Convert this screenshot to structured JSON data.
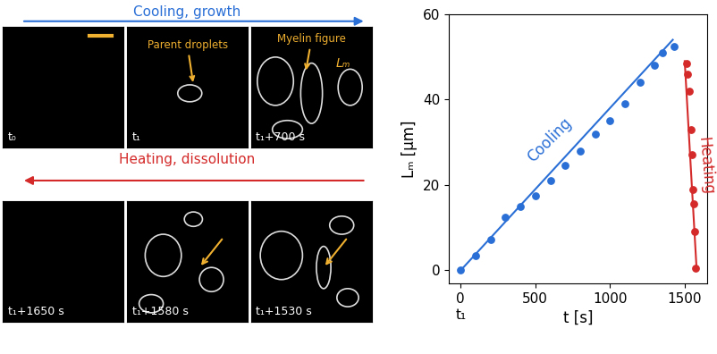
{
  "panels": {
    "top_arrow": {
      "text": "Cooling, growth",
      "color": "#2a6fd6"
    },
    "bottom_arrow": {
      "text": "Heating, dissolution",
      "color": "#d42a2a"
    },
    "top": [
      {
        "time": "t₀"
      },
      {
        "time": "t₁",
        "annotation": "Parent droplets"
      },
      {
        "time": "t₁+700 s",
        "annotation": "Myelin figure",
        "label": "Lₘ"
      }
    ],
    "bottom": [
      {
        "time": "t₁+1650 s"
      },
      {
        "time": "t₁+1580 s"
      },
      {
        "time": "t₁+1530 s"
      }
    ]
  },
  "chart_data": {
    "type": "scatter",
    "xlabel": "t [s]",
    "ylabel": "Lₘ [µm]",
    "xlim": [
      -80,
      1650
    ],
    "ylim": [
      -3,
      60
    ],
    "xticks": [
      0,
      500,
      1000,
      1500
    ],
    "yticks": [
      0,
      20,
      40,
      60
    ],
    "series": [
      {
        "name": "Cooling",
        "color": "#2a6fd6",
        "marker": "circle",
        "line_style": "solid",
        "x": [
          0,
          100,
          200,
          300,
          400,
          500,
          600,
          700,
          800,
          900,
          1000,
          1100,
          1200,
          1300,
          1350,
          1430
        ],
        "values": [
          0,
          3.5,
          7.3,
          12.5,
          15,
          17.5,
          21,
          24.5,
          28,
          32,
          35,
          39,
          44,
          48,
          51,
          52.5
        ],
        "fit": {
          "x": [
            0,
            1420
          ],
          "values": [
            0,
            54
          ]
        }
      },
      {
        "name": "Heating",
        "color": "#d42a2a",
        "marker": "circle",
        "line_style": "solid",
        "x": [
          1510,
          1520,
          1530,
          1540,
          1550,
          1555,
          1560,
          1565,
          1575
        ],
        "values": [
          48.5,
          46,
          42,
          33,
          27,
          19,
          15.5,
          9,
          0.5
        ],
        "fit": {
          "x": [
            1500,
            1580
          ],
          "values": [
            49,
            0
          ]
        }
      }
    ],
    "annotations": [
      {
        "text": "t₁",
        "x": 0
      }
    ]
  }
}
